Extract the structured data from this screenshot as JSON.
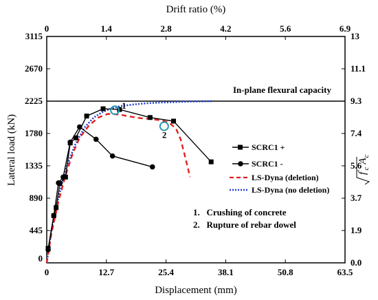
{
  "chart_data": {
    "type": "line",
    "title": "",
    "xlabel": "Displacement (mm)",
    "ylabel": "Lateral load (kN)",
    "x2label": "Drift ratio (%)",
    "y2label_parts": [
      "f",
      "'",
      "c",
      "A",
      "c"
    ],
    "xlim": [
      0,
      63.5
    ],
    "ylim": [
      0,
      3115
    ],
    "x_ticks": [
      "0",
      "12.7",
      "25.4",
      "38.1",
      "50.8",
      "63.5"
    ],
    "x_tick_values": [
      0,
      12.7,
      25.4,
      38.1,
      50.8,
      63.5
    ],
    "y_ticks": [
      "0",
      "445",
      "890",
      "1335",
      "1780",
      "2225",
      "2670",
      "3115"
    ],
    "y_tick_values": [
      0,
      445,
      890,
      1335,
      1780,
      2225,
      2670,
      3115
    ],
    "x2_ticks": [
      "0",
      "1.4",
      "2.8",
      "4.2",
      "5.6",
      "6.9"
    ],
    "y2_ticks": [
      "0.0",
      "1.9",
      "3.7",
      "5.6",
      "7.4",
      "9.3",
      "11.1",
      "13"
    ],
    "reference_line": {
      "y": 2225,
      "label": "In-plane flexural capacity"
    },
    "series": [
      {
        "name": "SCRC1 +",
        "color": "#000000",
        "style": "solid",
        "marker": "square",
        "x": [
          0.3,
          1.5,
          2.0,
          2.8,
          4.0,
          5.0,
          6.2,
          8.5,
          12.0,
          15.5,
          22.0,
          27.0,
          35.0
        ],
        "y": [
          200,
          650,
          760,
          1090,
          1180,
          1650,
          1720,
          2020,
          2120,
          2110,
          2000,
          1950,
          1390
        ]
      },
      {
        "name": "SCRC1 -",
        "color": "#000000",
        "style": "solid",
        "marker": "circle",
        "x": [
          0.3,
          1.5,
          2.5,
          3.5,
          5.0,
          7.0,
          10.5,
          14.0,
          22.5
        ],
        "y": [
          180,
          650,
          1100,
          1180,
          1660,
          1870,
          1700,
          1470,
          1320
        ]
      },
      {
        "name": "LS-Dyna (deletion)",
        "color": "#e0201c",
        "style": "dashed",
        "marker": "none",
        "x": [
          0,
          1.0,
          2.5,
          4.0,
          5.5,
          7.0,
          9.0,
          11.0,
          13.0,
          15.5,
          18.0,
          20.0,
          22.0,
          24.5,
          26.0,
          27.5,
          28.5,
          29.3,
          30.0,
          30.5
        ],
        "y": [
          0,
          400,
          850,
          1200,
          1500,
          1720,
          1890,
          2000,
          2050,
          2040,
          2010,
          1990,
          1980,
          1960,
          1930,
          1850,
          1700,
          1500,
          1320,
          1180
        ]
      },
      {
        "name": "LS-Dyna (no deletion)",
        "color": "#1f3fd6",
        "style": "dotted",
        "marker": "none",
        "x": [
          0,
          1.0,
          2.5,
          4.0,
          6.0,
          8.0,
          10.0,
          12.0,
          14.0,
          16.0,
          18.5,
          21.0,
          24.0,
          27.0,
          30.0,
          33.0,
          35.5
        ],
        "y": [
          0,
          450,
          900,
          1280,
          1620,
          1860,
          2000,
          2080,
          2130,
          2160,
          2180,
          2195,
          2205,
          2212,
          2218,
          2222,
          2225
        ]
      }
    ],
    "annotations": [
      {
        "label": "1",
        "x": 14.5,
        "y": 2100
      },
      {
        "label": "2",
        "x": 25.0,
        "y": 1880
      }
    ],
    "notes": [
      "1.   Crushing of concrete",
      "2.   Rupture of rebar dowel"
    ],
    "legend_position": "right",
    "grid": false
  }
}
